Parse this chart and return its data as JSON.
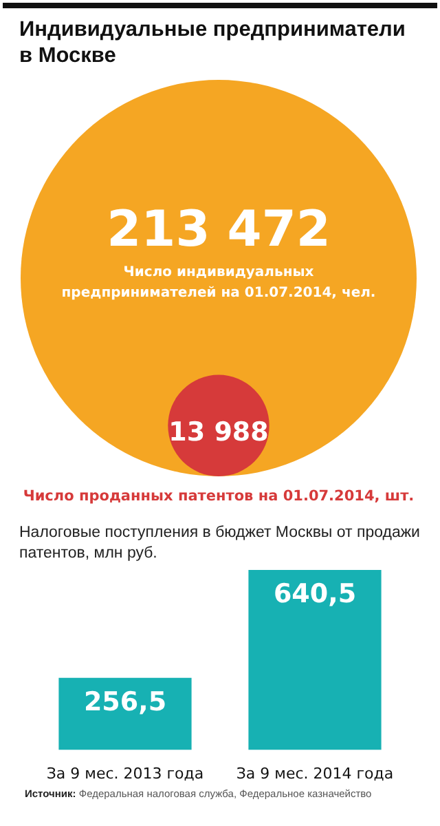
{
  "chart_data": [
    {
      "type": "other",
      "title": "Индивидуальные предприниматели в Москве",
      "categories": [
        "Число индивидуальных предпринимателей на 01.07.2014, чел.",
        "Число проданных патентов на 01.07.2014, шт."
      ],
      "values": [
        213472,
        13988
      ],
      "value_labels": [
        "213 472",
        "13 988"
      ],
      "colors": [
        "#f5a623",
        "#d63a3a"
      ]
    },
    {
      "type": "bar",
      "title": "Налоговые поступления в бюджет Москвы от продажи патентов, млн руб.",
      "categories": [
        "За 9 мес. 2013 года",
        "За 9 мес. 2014 года"
      ],
      "values": [
        256.5,
        640.5
      ],
      "value_labels": [
        "256,5",
        "640,5"
      ],
      "color": "#17b1b3",
      "annotations": [
        "Источник: Федеральная налоговая служба, Федеральное казначейство"
      ]
    }
  ]
}
